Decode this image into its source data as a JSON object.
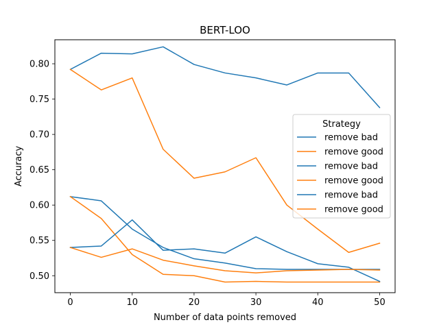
{
  "chart_data": {
    "type": "line",
    "title": "BERT-LOO",
    "xlabel": "Number of data points removed",
    "ylabel": "Accuracy",
    "xlim": [
      -2.5,
      52.5
    ],
    "ylim": [
      0.476,
      0.834
    ],
    "xticks": [
      0,
      10,
      20,
      30,
      40,
      50
    ],
    "yticks": [
      0.5,
      0.55,
      0.6,
      0.65,
      0.7,
      0.75,
      0.8
    ],
    "xtick_labels": [
      "0",
      "10",
      "20",
      "30",
      "40",
      "50"
    ],
    "ytick_labels": [
      "0.50",
      "0.55",
      "0.60",
      "0.65",
      "0.70",
      "0.75",
      "0.80"
    ],
    "grid": false,
    "legend": {
      "title": "Strategy",
      "placement": "center-right"
    },
    "x": [
      0,
      5,
      10,
      15,
      20,
      25,
      30,
      35,
      40,
      45,
      50
    ],
    "series": [
      {
        "name": "remove bad",
        "color": "#1f77b4",
        "values": [
          0.792,
          0.815,
          0.814,
          0.824,
          0.799,
          0.787,
          0.78,
          0.77,
          0.787,
          0.787,
          0.738
        ]
      },
      {
        "name": "remove good",
        "color": "#ff7f0e",
        "values": [
          0.792,
          0.763,
          0.78,
          0.679,
          0.638,
          0.647,
          0.667,
          0.6,
          0.566,
          0.533,
          0.546
        ]
      },
      {
        "name": "remove bad",
        "color": "#1f77b4",
        "values": [
          0.612,
          0.606,
          0.566,
          0.54,
          0.524,
          0.518,
          0.51,
          0.509,
          0.509,
          0.509,
          0.509
        ]
      },
      {
        "name": "remove good",
        "color": "#ff7f0e",
        "values": [
          0.612,
          0.581,
          0.53,
          0.502,
          0.5,
          0.491,
          0.492,
          0.491,
          0.491,
          0.491,
          0.491
        ]
      },
      {
        "name": "remove bad",
        "color": "#1f77b4",
        "values": [
          0.54,
          0.542,
          0.579,
          0.536,
          0.538,
          0.532,
          0.555,
          0.534,
          0.517,
          0.512,
          0.492
        ]
      },
      {
        "name": "remove good",
        "color": "#ff7f0e",
        "values": [
          0.54,
          0.526,
          0.538,
          0.522,
          0.514,
          0.507,
          0.504,
          0.507,
          0.508,
          0.509,
          0.508
        ]
      }
    ]
  }
}
